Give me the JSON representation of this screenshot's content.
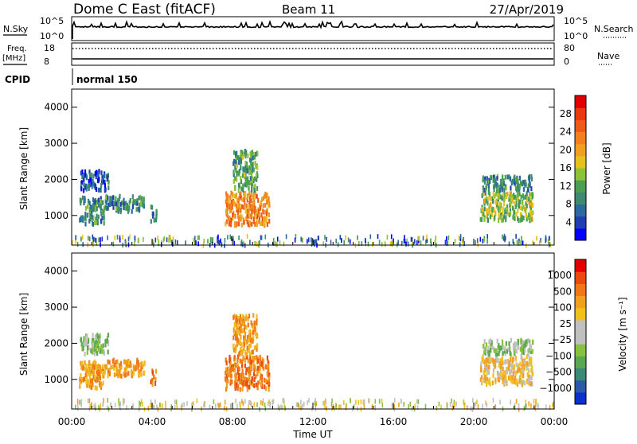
{
  "header": {
    "station": "Dome C East (fitACF)",
    "beam": "Beam 11",
    "date": "27/Apr/2019"
  },
  "status_panels": {
    "nsky_label": "N.Sky",
    "nsky_ticks": [
      "10^5",
      "10^0"
    ],
    "nsearch_label": "N.Search",
    "nsearch_ticks": [
      "10^5",
      "10^0"
    ],
    "freq_label": "Freq.",
    "freq_unit": "[MHz]",
    "freq_ticks": [
      "18",
      "8"
    ],
    "nave_label": "Nave",
    "nave_ticks": [
      "80",
      "0"
    ],
    "cpid_label": "CPID",
    "cpid_value": "normal 150"
  },
  "chart_data": [
    {
      "type": "heatmap",
      "parameter": "power",
      "ylabel": "Slant Range [km]",
      "ylim": [
        180,
        4500
      ],
      "yticks": [
        1000,
        2000,
        3000,
        4000
      ],
      "xlim_hours": [
        0,
        24
      ],
      "colorbar": {
        "label": "Power [dB]",
        "ticks": [
          4,
          8,
          12,
          16,
          20,
          24,
          28
        ],
        "range": [
          0,
          32
        ],
        "colors": [
          "#0000ff",
          "#1f3fb0",
          "#2a6aa0",
          "#3c8a70",
          "#4aa050",
          "#8cc23a",
          "#e6c020",
          "#f0a020",
          "#f08020",
          "#ee5a18",
          "#e83a10",
          "#e00000"
        ]
      },
      "clusters": [
        {
          "t": [
            0.35,
            1.6
          ],
          "r": [
            820,
            1560
          ],
          "level": 10
        },
        {
          "t": [
            0.4,
            1.8
          ],
          "r": [
            1750,
            2300
          ],
          "level": 6
        },
        {
          "t": [
            1.6,
            3.6
          ],
          "r": [
            1150,
            1600
          ],
          "level": 9
        },
        {
          "t": [
            3.9,
            4.2
          ],
          "r": [
            900,
            1300
          ],
          "level": 8
        },
        {
          "t": [
            7.6,
            9.8
          ],
          "r": [
            780,
            1700
          ],
          "level": 22
        },
        {
          "t": [
            8.0,
            9.2
          ],
          "r": [
            1750,
            2850
          ],
          "level": 11
        },
        {
          "t": [
            20.3,
            22.9
          ],
          "r": [
            920,
            1700
          ],
          "level": 14
        },
        {
          "t": [
            20.4,
            22.9
          ],
          "r": [
            1750,
            2150
          ],
          "level": 9
        }
      ]
    },
    {
      "type": "heatmap",
      "parameter": "velocity",
      "ylabel": "Slant Range [km]",
      "ylim": [
        180,
        4500
      ],
      "yticks": [
        1000,
        2000,
        3000,
        4000
      ],
      "xlabel": "Time UT",
      "xticks": [
        "00:00",
        "04:00",
        "08:00",
        "12:00",
        "16:00",
        "20:00",
        "00:00"
      ],
      "xlim_hours": [
        0,
        24
      ],
      "colorbar": {
        "label": "Velocity [m s⁻¹]",
        "ticks": [
          "1000",
          "500",
          "100",
          "25",
          "−25",
          "−100",
          "−500",
          "−1000"
        ],
        "colors": [
          "#0a32c8",
          "#2a5aa8",
          "#3a8a78",
          "#5aa850",
          "#88c040",
          "#c0c0c0",
          "#c0c0c0",
          "#f0c020",
          "#f0a020",
          "#f07818",
          "#e84a10",
          "#e00000"
        ]
      },
      "clusters": [
        {
          "t": [
            0.35,
            1.6
          ],
          "r": [
            820,
            1560
          ],
          "level": 8
        },
        {
          "t": [
            0.4,
            1.8
          ],
          "r": [
            1750,
            2300
          ],
          "level": 4
        },
        {
          "t": [
            1.6,
            3.6
          ],
          "r": [
            1150,
            1600
          ],
          "level": 8
        },
        {
          "t": [
            3.9,
            4.2
          ],
          "r": [
            900,
            1300
          ],
          "level": 9
        },
        {
          "t": [
            7.6,
            9.8
          ],
          "r": [
            780,
            1700
          ],
          "level": 9
        },
        {
          "t": [
            8.0,
            9.2
          ],
          "r": [
            1750,
            2850
          ],
          "level": 8
        },
        {
          "t": [
            20.3,
            22.9
          ],
          "r": [
            920,
            1700
          ],
          "level": 7
        },
        {
          "t": [
            20.4,
            22.9
          ],
          "r": [
            1750,
            2150
          ],
          "level": 4
        }
      ]
    }
  ]
}
